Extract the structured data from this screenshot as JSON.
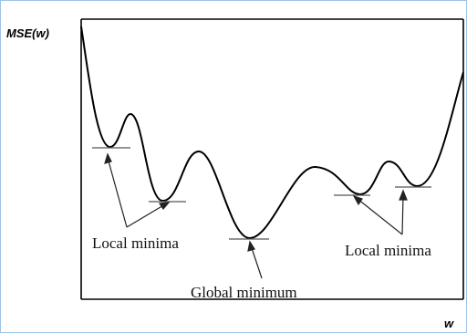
{
  "figure": {
    "ylabel": "MSE(w)",
    "xlabel": "w"
  },
  "annotations": {
    "local_left": "Local minima",
    "global": "Global minimum",
    "local_right": "Local minima"
  },
  "minima": [
    {
      "kind": "local",
      "label_group": "local_left"
    },
    {
      "kind": "local",
      "label_group": "local_left"
    },
    {
      "kind": "global",
      "label_group": "global"
    },
    {
      "kind": "local",
      "label_group": "local_right"
    },
    {
      "kind": "local",
      "label_group": "local_right"
    }
  ],
  "colors": {
    "frame_border": "#9dc3e6",
    "curve": "#000000",
    "text": "#111111"
  }
}
